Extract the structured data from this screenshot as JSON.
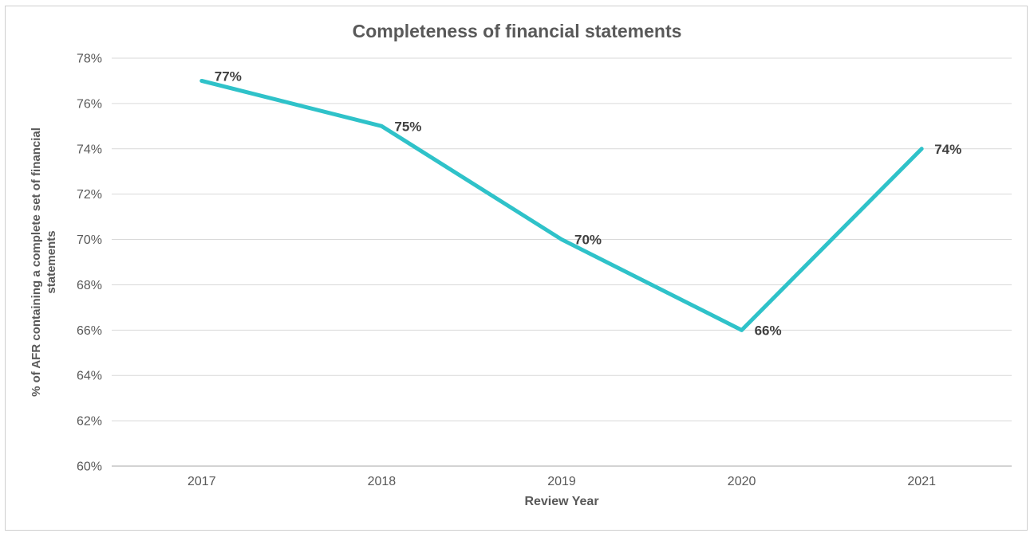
{
  "chart_data": {
    "type": "line",
    "title": "Completeness of financial statements",
    "xlabel": "Review Year",
    "ylabel": "% of AFR containing a complete set of financial statements",
    "categories": [
      "2017",
      "2018",
      "2019",
      "2020",
      "2021"
    ],
    "series": [
      {
        "name": "% of AFR containing a complete set of financial statements",
        "values": [
          77,
          75,
          70,
          66,
          74
        ],
        "data_labels": [
          "77%",
          "75%",
          "70%",
          "66%",
          "74%"
        ]
      }
    ],
    "ylim": [
      60,
      78
    ],
    "ytick_step": 2,
    "ytick_labels": [
      "78%",
      "76%",
      "74%",
      "72%",
      "70%",
      "68%",
      "66%",
      "64%",
      "62%",
      "60%"
    ],
    "grid": true,
    "legend_position": "none",
    "colors": {
      "line": "#2FC2C9",
      "gridline": "#D9D9D9",
      "axis_line": "#D3D3D3",
      "title_text": "#595959",
      "tick_text": "#595959",
      "data_label_text": "#404040",
      "frame_border": "#CFCFCF",
      "background": "#FFFFFF"
    }
  }
}
